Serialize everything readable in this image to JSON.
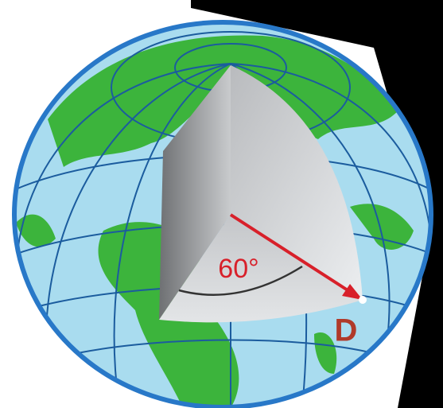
{
  "labels": {
    "angle": "60°",
    "point": "D"
  }
}
